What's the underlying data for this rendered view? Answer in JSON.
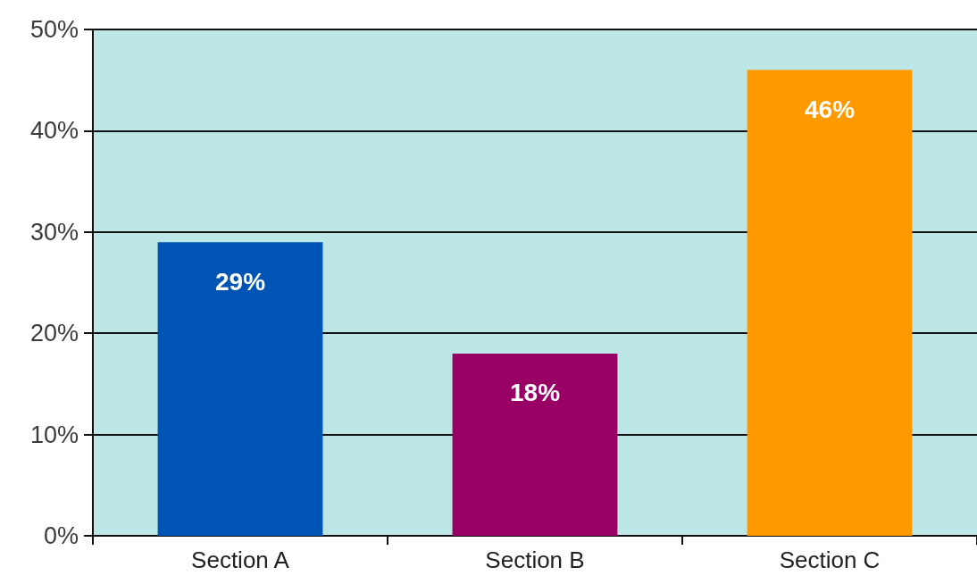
{
  "chart_data": {
    "type": "bar",
    "categories": [
      "Section A",
      "Section B",
      "Section C"
    ],
    "values": [
      29,
      18,
      46
    ],
    "colors": [
      "#0054b4",
      "#990066",
      "#ff9900"
    ],
    "value_labels": [
      "29%",
      "18%",
      "46%"
    ],
    "ylim": [
      0,
      50
    ],
    "yticks": [
      {
        "value": 0,
        "label": "0%"
      },
      {
        "value": 10,
        "label": "10%"
      },
      {
        "value": 20,
        "label": "20%"
      },
      {
        "value": 30,
        "label": "30%"
      },
      {
        "value": 40,
        "label": "40%"
      },
      {
        "value": 50,
        "label": "50%"
      }
    ],
    "grid": "y"
  }
}
